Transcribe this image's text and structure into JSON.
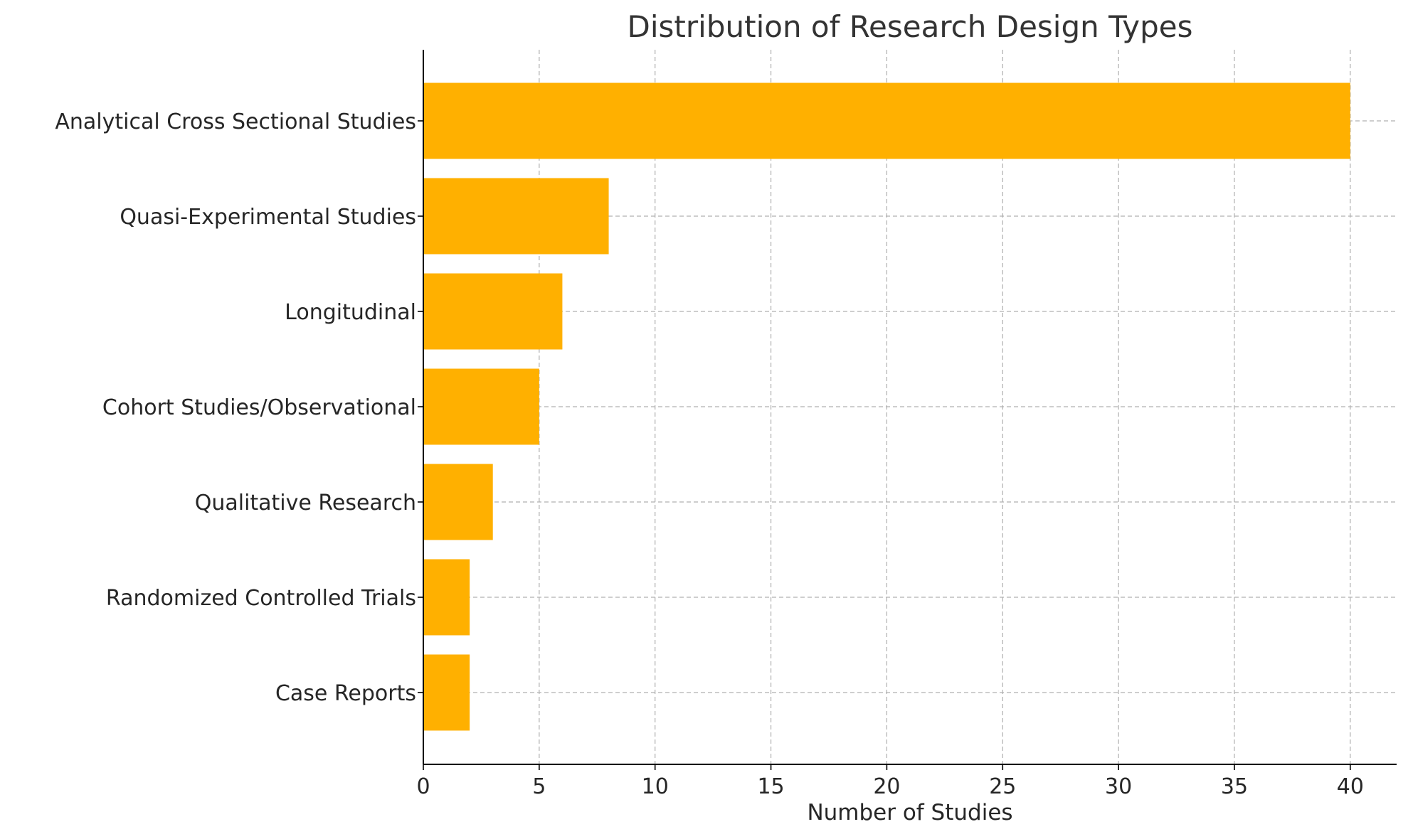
{
  "chart_data": {
    "type": "bar",
    "orientation": "horizontal",
    "title": "Distribution of Research Design Types",
    "xlabel": "Number of Studies",
    "ylabel": "",
    "categories": [
      "Analytical Cross Sectional Studies",
      "Quasi-Experimental Studies",
      "Longitudinal",
      "Cohort Studies/Observational",
      "Qualitative Research",
      "Randomized Controlled Trials",
      "Case Reports"
    ],
    "values": [
      40,
      8,
      6,
      5,
      3,
      2,
      2
    ],
    "xlim": [
      0,
      42
    ],
    "xticks": [
      0,
      5,
      10,
      15,
      20,
      25,
      30,
      35,
      40
    ],
    "grid": true,
    "bar_color": "#FFB000",
    "legend": "none"
  }
}
